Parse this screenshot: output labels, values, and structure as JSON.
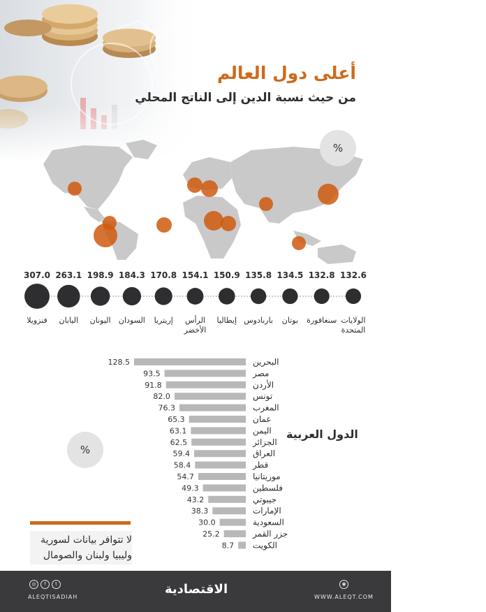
{
  "header": {
    "title": "أعلى دول العالم",
    "subtitle": "من حيث نسبة الدين إلى الناتج المحلي"
  },
  "badges": {
    "map_unit": "%",
    "arab_unit": "%"
  },
  "colors": {
    "accent": "#cf6a1a",
    "bubble": "#2e2e30",
    "bar": "#b8b8b8",
    "map": "#c9c9c9"
  },
  "chart_data": [
    {
      "type": "scatter",
      "title": "",
      "categories": [
        "فنزويلا",
        "اليابان",
        "اليونان",
        "السودان",
        "إريتريا",
        "الرأس الأخضر",
        "إيطاليا",
        "باربادوس",
        "بوتان",
        "سنغافورة",
        "الولايات المتحدة"
      ],
      "values": [
        307.0,
        263.1,
        198.9,
        184.3,
        170.8,
        154.1,
        150.9,
        135.8,
        134.5,
        132.8,
        132.6
      ],
      "value_labels": [
        "307.0",
        "263.1",
        "198.9",
        "184.3",
        "170.8",
        "154.1",
        "150.9",
        "135.8",
        "134.5",
        "132.8",
        "132.6"
      ],
      "unit": "%"
    },
    {
      "type": "bar",
      "title": "الدول العربية",
      "categories": [
        "البحرين",
        "مصر",
        "الأردن",
        "تونس",
        "المغرب",
        "عمان",
        "اليمن",
        "الجزائر",
        "العراق",
        "قطر",
        "موريتانيا",
        "فلسطين",
        "جيبوتي",
        "الإمارات",
        "السعودية",
        "جزر القمر",
        "الكويت"
      ],
      "values": [
        128.5,
        93.5,
        91.8,
        82.0,
        76.3,
        65.3,
        63.1,
        62.5,
        59.4,
        58.4,
        54.7,
        49.3,
        43.2,
        38.3,
        30.0,
        25.2,
        8.7
      ],
      "value_labels": [
        "128.5",
        "93.5",
        "91.8",
        "82.0",
        "76.3",
        "65.3",
        "63.1",
        "62.5",
        "59.4",
        "58.4",
        "54.7",
        "49.3",
        "43.2",
        "38.3",
        "30.0",
        "25.2",
        "8.7"
      ],
      "unit": "%"
    }
  ],
  "note": {
    "text": "لا تتوافر بيانات لسورية وليبيا ولبنان والصومال"
  },
  "footer": {
    "brand": "الاقتصادية",
    "handle": "ALEQTISADIAH",
    "site": "WWW.ALEQT.COM",
    "social_icons": [
      "instagram-icon",
      "facebook-icon",
      "twitter-icon",
      "rss-icon"
    ]
  }
}
